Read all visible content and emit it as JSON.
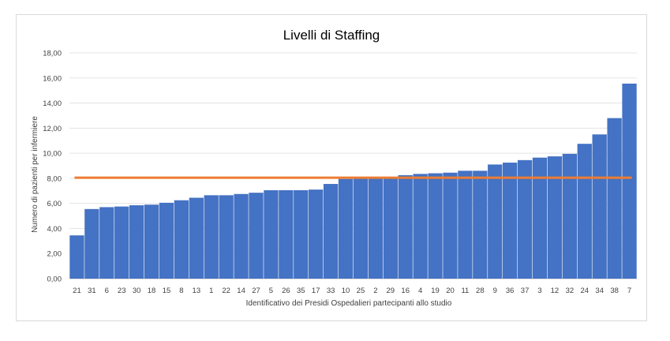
{
  "chart_data": {
    "type": "bar",
    "title": "Livelli di Staffing",
    "xlabel": "Identificativo dei Presidi Ospedalieri partecipanti allo studio",
    "ylabel": "Numero di pazienti per infermiere",
    "ylim": [
      0,
      18
    ],
    "yticks": [
      "0,00",
      "2,00",
      "4,00",
      "6,00",
      "8,00",
      "10,00",
      "12,00",
      "14,00",
      "16,00",
      "18,00"
    ],
    "grid": true,
    "bar_color": "#4472C4",
    "reference_line": {
      "value": 8.05,
      "color": "#ED7D31"
    },
    "categories": [
      "21",
      "31",
      "6",
      "23",
      "30",
      "18",
      "15",
      "8",
      "13",
      "1",
      "22",
      "14",
      "27",
      "5",
      "26",
      "35",
      "17",
      "33",
      "10",
      "25",
      "2",
      "29",
      "16",
      "4",
      "19",
      "20",
      "11",
      "28",
      "9",
      "36",
      "37",
      "3",
      "12",
      "32",
      "24",
      "34",
      "38",
      "7"
    ],
    "values": [
      3.45,
      5.55,
      5.7,
      5.75,
      5.85,
      5.9,
      6.05,
      6.25,
      6.45,
      6.65,
      6.65,
      6.75,
      6.85,
      7.05,
      7.05,
      7.05,
      7.1,
      7.55,
      7.95,
      8.05,
      8.1,
      8.1,
      8.25,
      8.35,
      8.4,
      8.45,
      8.6,
      8.6,
      9.1,
      9.25,
      9.45,
      9.65,
      9.75,
      9.95,
      10.75,
      11.5,
      12.8,
      15.55
    ]
  }
}
